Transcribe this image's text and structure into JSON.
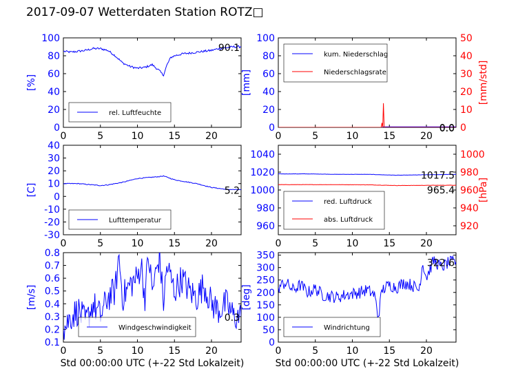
{
  "title": "2017-09-07 Wetterdaten Station ROTZ□",
  "colors": {
    "left": "#0000ff",
    "right": "#ff0000",
    "axis": "#000000"
  },
  "chart_data": [
    {
      "id": "humidity",
      "type": "line",
      "ylabel": "[%]",
      "xlim": [
        0,
        24
      ],
      "ylim": [
        0,
        100
      ],
      "xticks": [
        0,
        5,
        10,
        15,
        20
      ],
      "yticks": [
        0,
        20,
        40,
        60,
        80,
        100
      ],
      "legend": {
        "placement": "lower-left",
        "entries": [
          "rel. Luftfeuchte"
        ]
      },
      "last_value_label": "90.1",
      "series": [
        {
          "name": "rel. Luftfeuchte",
          "color": "#0000ff",
          "x": [
            0,
            1,
            2,
            3,
            4,
            5,
            6,
            7,
            8,
            9,
            10,
            11,
            12,
            13,
            13.5,
            14,
            14.5,
            15,
            16,
            17,
            18,
            19,
            20,
            21,
            22,
            23,
            24
          ],
          "y": [
            85,
            84,
            85,
            86,
            88,
            88,
            86,
            80,
            72,
            68,
            66,
            67,
            70,
            63,
            58,
            70,
            78,
            80,
            82,
            83,
            84,
            85,
            86,
            88,
            89,
            90,
            90.1
          ]
        }
      ]
    },
    {
      "id": "precipitation",
      "type": "line",
      "ylabel": "[mm]",
      "ylabel_right": "[mm/std]",
      "xlim": [
        0,
        24
      ],
      "ylim": [
        0,
        100
      ],
      "ylim_right": [
        0,
        50
      ],
      "xticks": [
        0,
        5,
        10,
        15,
        20
      ],
      "yticks": [
        0,
        20,
        40,
        60,
        80,
        100
      ],
      "yticks_right": [
        0,
        10,
        20,
        30,
        40,
        50
      ],
      "legend": {
        "placement": "upper-left",
        "entries": [
          "kum. Niederschlag",
          "Niederschlagsrate"
        ]
      },
      "last_value_label": "0.0",
      "last_value_label_right": "0.0",
      "series": [
        {
          "name": "kum. Niederschlag",
          "axis": "left",
          "color": "#0000ff",
          "x": [
            0,
            14,
            14.2,
            24
          ],
          "y": [
            0,
            0,
            0.5,
            0.5
          ]
        },
        {
          "name": "Niederschlagsrate",
          "axis": "right",
          "color": "#ff0000",
          "x": [
            0,
            13.9,
            14.0,
            14.1,
            14.2,
            14.3,
            14.4,
            24
          ],
          "y": [
            0,
            0,
            2.5,
            0,
            13.5,
            0,
            0,
            0
          ]
        }
      ]
    },
    {
      "id": "temperature",
      "type": "line",
      "ylabel": "[C]",
      "xlim": [
        0,
        24
      ],
      "ylim": [
        -30,
        40
      ],
      "xticks": [
        0,
        5,
        10,
        15,
        20
      ],
      "yticks": [
        -30,
        -20,
        -10,
        0,
        10,
        20,
        30,
        40
      ],
      "legend": {
        "placement": "lower-left",
        "entries": [
          "Lufttemperatur"
        ]
      },
      "last_value_label": "5.2",
      "series": [
        {
          "name": "Lufttemperatur",
          "color": "#0000ff",
          "x": [
            0,
            2,
            4,
            5,
            6,
            8,
            10,
            12,
            13,
            13.5,
            14,
            15,
            16,
            18,
            20,
            22,
            24
          ],
          "y": [
            10,
            10,
            9,
            8.5,
            9,
            11,
            14,
            15,
            15.5,
            16,
            15,
            13,
            12,
            10,
            7,
            5.5,
            5.2
          ]
        }
      ]
    },
    {
      "id": "pressure",
      "type": "line",
      "ylabel_right": "[hPa]",
      "xlim": [
        0,
        24
      ],
      "ylim": [
        950,
        1050
      ],
      "ylim_right": [
        910,
        1010
      ],
      "xticks": [
        0,
        5,
        10,
        15,
        20
      ],
      "yticks": [
        960,
        980,
        1000,
        1020,
        1040
      ],
      "yticks_right": [
        920,
        940,
        960,
        980,
        1000
      ],
      "legend": {
        "placement": "lower-left",
        "entries": [
          "red. Luftdruck",
          "abs. Luftdruck"
        ]
      },
      "last_value_label": "1017.5",
      "last_value_label_right": "965.4",
      "series": [
        {
          "name": "red. Luftdruck",
          "axis": "left",
          "color": "#0000ff",
          "x": [
            0,
            4,
            8,
            12,
            16,
            20,
            24
          ],
          "y": [
            1018,
            1018,
            1017.5,
            1017.5,
            1016.5,
            1017,
            1017.5
          ]
        },
        {
          "name": "abs. Luftdruck",
          "axis": "right",
          "color": "#ff0000",
          "x": [
            0,
            4,
            8,
            12,
            16,
            20,
            24
          ],
          "y": [
            966,
            966,
            966,
            965.8,
            965,
            965.2,
            965.4
          ]
        }
      ]
    },
    {
      "id": "wind-speed",
      "type": "line",
      "ylabel": "[m/s]",
      "xlabel": "Std 00:00:00 UTC (+-22 Std Lokalzeit)",
      "xlim": [
        0,
        24
      ],
      "ylim": [
        0.1,
        0.8
      ],
      "xticks": [
        0,
        5,
        10,
        15,
        20
      ],
      "yticks": [
        0.1,
        0.2,
        0.3,
        0.4,
        0.5,
        0.6,
        0.7,
        0.8
      ],
      "legend": {
        "placement": "lower-center",
        "entries": [
          "Windgeschwindigkeit"
        ]
      },
      "last_value_label": "0.3",
      "series": [
        {
          "name": "Windgeschwindigkeit",
          "color": "#0000ff",
          "x": [
            0,
            1,
            2,
            3,
            4,
            5,
            6,
            7,
            7.5,
            8,
            9,
            10,
            10.5,
            11,
            11.5,
            12,
            13,
            13.5,
            14,
            15,
            16,
            17,
            18,
            19,
            20,
            21,
            22,
            23,
            24
          ],
          "y": [
            0.2,
            0.3,
            0.35,
            0.25,
            0.4,
            0.3,
            0.45,
            0.5,
            0.78,
            0.45,
            0.55,
            0.6,
            0.72,
            0.45,
            0.78,
            0.5,
            0.78,
            0.4,
            0.7,
            0.5,
            0.6,
            0.5,
            0.45,
            0.55,
            0.4,
            0.35,
            0.4,
            0.3,
            0.3
          ]
        }
      ]
    },
    {
      "id": "wind-direction",
      "type": "line",
      "ylabel": "[deg]",
      "xlabel": "Std 00:00:00 UTC (+-22 Std Lokalzeit)",
      "xlim": [
        0,
        24
      ],
      "ylim": [
        0,
        360
      ],
      "xticks": [
        0,
        5,
        10,
        15,
        20
      ],
      "yticks": [
        0,
        50,
        100,
        150,
        200,
        250,
        300,
        350
      ],
      "legend": {
        "placement": "lower-left",
        "entries": [
          "Windrichtung"
        ]
      },
      "last_value_label": "322.6",
      "series": [
        {
          "name": "Windrichtung",
          "color": "#0000ff",
          "x": [
            0,
            1,
            2,
            3,
            4,
            5,
            6,
            7,
            8,
            9,
            10,
            11,
            12,
            13,
            13.5,
            14,
            15,
            16,
            17,
            18,
            19,
            19.5,
            20,
            21,
            22,
            23,
            24
          ],
          "y": [
            220,
            240,
            210,
            230,
            200,
            215,
            190,
            185,
            180,
            190,
            195,
            200,
            210,
            190,
            100,
            210,
            230,
            220,
            240,
            230,
            210,
            320,
            260,
            330,
            300,
            320,
            322.6
          ]
        }
      ]
    }
  ]
}
